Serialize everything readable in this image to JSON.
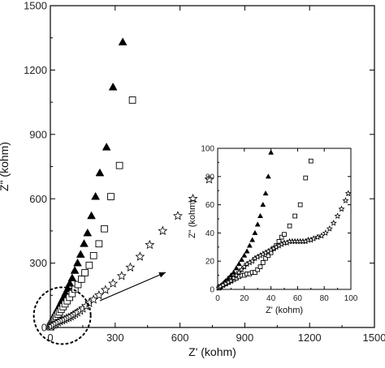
{
  "chart_data": [
    {
      "type": "scatter",
      "xlabel": "Z' (kohm)",
      "ylabel": "Z\" (kohm)",
      "xlim": [
        0,
        1500
      ],
      "ylim": [
        0,
        1500
      ],
      "xticks": [
        "0",
        "300",
        "600",
        "900",
        "1200",
        "1500"
      ],
      "yticks": [
        "0",
        "300",
        "600",
        "900",
        "1200",
        "1500"
      ],
      "grid": false,
      "series": [
        {
          "marker": "filled-triangle",
          "color": "#000000",
          "x": [
            0,
            3,
            6,
            10,
            14,
            18,
            23,
            28,
            33,
            39,
            46,
            53,
            61,
            70,
            80,
            90,
            101,
            113,
            126,
            140,
            156,
            172,
            190,
            209,
            229,
            260,
            290,
            335
          ],
          "y": [
            5,
            15,
            25,
            35,
            45,
            55,
            65,
            75,
            85,
            95,
            110,
            125,
            140,
            160,
            180,
            205,
            230,
            265,
            300,
            340,
            390,
            440,
            520,
            610,
            720,
            840,
            1120,
            1330
          ]
        },
        {
          "marker": "open-square",
          "color": "#000000",
          "x": [
            0,
            4,
            8,
            12,
            17,
            22,
            28,
            35,
            42,
            50,
            59,
            68,
            78,
            89,
            101,
            114,
            128,
            144,
            160,
            180,
            200,
            225,
            250,
            280,
            320,
            380
          ],
          "y": [
            3,
            10,
            17,
            25,
            33,
            42,
            52,
            62,
            72,
            84,
            97,
            110,
            124,
            140,
            158,
            178,
            200,
            225,
            255,
            290,
            335,
            390,
            460,
            610,
            755,
            1060
          ]
        },
        {
          "marker": "open-star",
          "color": "#000000",
          "x": [
            5,
            15,
            25,
            35,
            45,
            55,
            65,
            75,
            85,
            95,
            105,
            115,
            125,
            138,
            150,
            165,
            180,
            200,
            225,
            255,
            290,
            330,
            370,
            415,
            460,
            520,
            590,
            660,
            735
          ],
          "y": [
            5,
            12,
            18,
            24,
            29,
            33,
            37,
            42,
            46,
            51,
            57,
            63,
            70,
            78,
            88,
            100,
            114,
            130,
            150,
            175,
            205,
            240,
            280,
            330,
            385,
            450,
            520,
            600,
            690
          ]
        }
      ]
    },
    {
      "type": "scatter",
      "role": "inset",
      "xlabel": "Z' (kohm)",
      "ylabel": "Z\" (kohm)",
      "xlim": [
        0,
        100
      ],
      "ylim": [
        0,
        100
      ],
      "xticks": [
        "0",
        "20",
        "40",
        "60",
        "80",
        "100"
      ],
      "yticks": [
        "0",
        "20",
        "40",
        "60",
        "80",
        "100"
      ],
      "grid": false,
      "series": [
        {
          "marker": "filled-triangle",
          "color": "#000000",
          "x": [
            1,
            2,
            3,
            4,
            5,
            6,
            8,
            10,
            12,
            14,
            16,
            18,
            20,
            22,
            24,
            26,
            28,
            30,
            32,
            34,
            36,
            38,
            40
          ],
          "y": [
            1,
            2,
            3,
            4,
            5,
            6,
            8,
            10,
            12,
            15,
            18,
            21,
            24,
            27,
            31,
            35,
            40,
            46,
            52,
            60,
            68,
            80,
            97
          ]
        },
        {
          "marker": "open-square",
          "color": "#000000",
          "x": [
            1,
            2,
            4,
            6,
            8,
            10,
            12,
            14,
            16,
            18,
            20,
            22,
            24,
            26,
            28,
            30,
            32,
            34,
            36,
            38,
            40,
            42,
            44,
            46,
            48,
            50,
            54,
            58,
            62,
            66,
            70
          ],
          "y": [
            1,
            2,
            3,
            4,
            5,
            6,
            7,
            8,
            9,
            10,
            10,
            11,
            11,
            12,
            12,
            14,
            16,
            19,
            22,
            24,
            26,
            29,
            31,
            34,
            37,
            39,
            45,
            52,
            60,
            79,
            91
          ]
        },
        {
          "marker": "open-star",
          "color": "#000000",
          "x": [
            1,
            2,
            4,
            6,
            8,
            10,
            12,
            14,
            16,
            18,
            20,
            22,
            24,
            26,
            28,
            30,
            32,
            34,
            36,
            38,
            40,
            42,
            44,
            46,
            48,
            50,
            52,
            54,
            56,
            58,
            60,
            62,
            64,
            66,
            68,
            70,
            72,
            75,
            78,
            81,
            84,
            87,
            90,
            93,
            96,
            98
          ],
          "y": [
            1,
            2,
            3,
            4,
            5,
            6,
            8,
            10,
            12,
            14,
            16,
            18,
            19,
            20,
            22,
            23,
            24,
            25,
            26,
            27,
            28,
            29,
            30,
            31,
            32,
            33,
            33,
            34,
            34,
            34,
            34,
            34,
            34,
            34,
            35,
            35,
            36,
            37,
            38,
            40,
            43,
            47,
            52,
            57,
            63,
            68
          ]
        }
      ]
    }
  ]
}
